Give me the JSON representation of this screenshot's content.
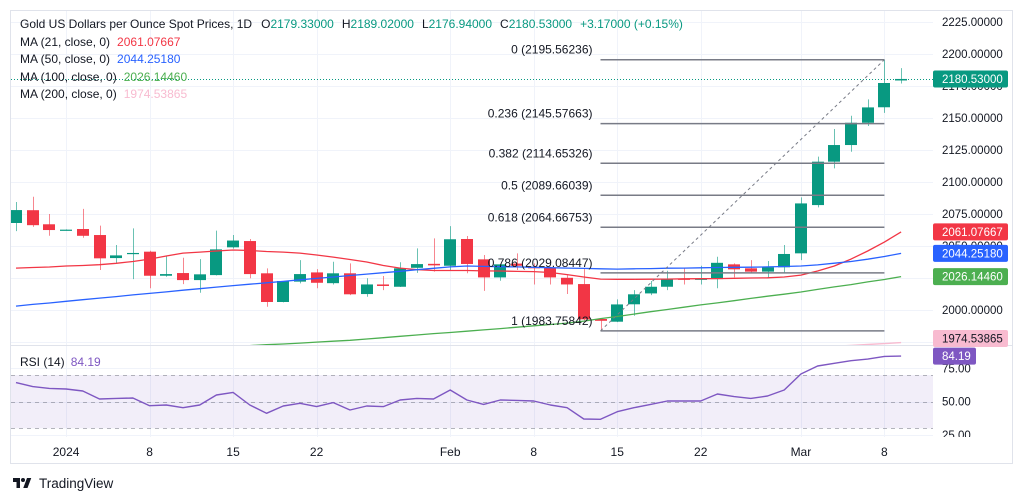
{
  "header": {
    "title": "Gold US Dollars per Ounce Spot Prices, 1D",
    "open_label": "O",
    "open": "2179.33000",
    "high_label": "H",
    "high": "2189.02000",
    "low_label": "L",
    "low": "2176.94000",
    "close_label": "C",
    "close": "2180.53000",
    "change": "+3.17000 (+0.15%)",
    "value_color": "#089981"
  },
  "indicators": [
    {
      "label": "MA (21, close, 0)",
      "value": "2061.07667",
      "color": "#F23645"
    },
    {
      "label": "MA (50, close, 0)",
      "value": "2044.25180",
      "color": "#2962FF"
    },
    {
      "label": "MA (100, close, 0)",
      "value": "2026.14460",
      "color": "#4CAF50"
    },
    {
      "label": "MA (200, close, 0)",
      "value": "1974.53865",
      "color": "#F8BBD0"
    }
  ],
  "rsi_legend": {
    "label": "RSI (14)",
    "value": "84.19",
    "color": "#7E57C2"
  },
  "colors": {
    "up": "#089981",
    "down": "#F23645",
    "text": "#131722",
    "grid": "#F0F3FA",
    "border": "#E0E3EB",
    "fib": "#787B86",
    "rsi_band": "#7E57C2"
  },
  "branding": {
    "name": "TradingView",
    "icon": "tradingview-logo-icon"
  },
  "chart_data": [
    {
      "type": "bar",
      "style": "candlestick",
      "title": "Gold US Dollars per Ounce Spot Prices, 1D",
      "xlabel": "",
      "ylabel": "",
      "ylim": [
        1972.7,
        2233.6
      ],
      "grid": true,
      "legend": "top-left",
      "y_ticks": [
        2225,
        2200,
        2175,
        2150,
        2125,
        2100,
        2075,
        2050,
        2025,
        2000,
        1975
      ],
      "y_tick_labels": [
        "2225.00000",
        "2200.00000",
        "2175.00000",
        "2150.00000",
        "2125.00000",
        "2100.00000",
        "2075.00000",
        "2050.00000",
        null,
        "2000.00000",
        null
      ],
      "x_ticks": [
        {
          "label": "2024",
          "index": 3
        },
        {
          "label": "8",
          "index": 8
        },
        {
          "label": "15",
          "index": 13
        },
        {
          "label": "22",
          "index": 18
        },
        {
          "label": "Feb",
          "index": 26
        },
        {
          "label": "8",
          "index": 31
        },
        {
          "label": "15",
          "index": 36
        },
        {
          "label": "22",
          "index": 41
        },
        {
          "label": "Mar",
          "index": 47
        },
        {
          "label": "8",
          "index": 52
        }
      ],
      "ohlc_fields": [
        "open",
        "high",
        "low",
        "close"
      ],
      "ohlc": [
        [
          2068.0,
          2084.4,
          2061.7,
          2078.1
        ],
        [
          2078.0,
          2088.5,
          2065.0,
          2066.3
        ],
        [
          2067.0,
          2075.0,
          2058.0,
          2062.5
        ],
        [
          2062.4,
          2063.0,
          2062.0,
          2062.8
        ],
        [
          2063.3,
          2079.0,
          2056.5,
          2058.0
        ],
        [
          2058.6,
          2065.9,
          2031.3,
          2040.4
        ],
        [
          2040.6,
          2050.8,
          2036.5,
          2042.7
        ],
        [
          2044.0,
          2063.8,
          2024.2,
          2044.6
        ],
        [
          2045.6,
          2046.3,
          2017.0,
          2026.8
        ],
        [
          2026.8,
          2042.0,
          2026.0,
          2028.1
        ],
        [
          2028.9,
          2040.9,
          2020.3,
          2023.4
        ],
        [
          2023.4,
          2039.8,
          2013.5,
          2027.9
        ],
        [
          2027.3,
          2062.0,
          2027.0,
          2047.4
        ],
        [
          2049.0,
          2058.6,
          2048.0,
          2054.3
        ],
        [
          2053.9,
          2055.5,
          2024.8,
          2028.1
        ],
        [
          2028.7,
          2032.6,
          2002.6,
          2006.3
        ],
        [
          2006.3,
          2022.7,
          2006.0,
          2022.7
        ],
        [
          2022.2,
          2039.0,
          2020.8,
          2028.1
        ],
        [
          2029.4,
          2032.0,
          2017.0,
          2021.3
        ],
        [
          2021.0,
          2037.7,
          2020.0,
          2028.7
        ],
        [
          2028.7,
          2036.5,
          2011.7,
          2012.3
        ],
        [
          2012.5,
          2024.8,
          2010.4,
          2020.0
        ],
        [
          2020.0,
          2026.6,
          2015.6,
          2018.8
        ],
        [
          2018.2,
          2037.3,
          2018.0,
          2032.6
        ],
        [
          2033.0,
          2048.2,
          2029.0,
          2035.9
        ],
        [
          2036.1,
          2056.0,
          2030.0,
          2034.9
        ],
        [
          2034.6,
          2065.6,
          2031.3,
          2055.3
        ],
        [
          2055.5,
          2057.8,
          2028.7,
          2036.0
        ],
        [
          2039.6,
          2043.0,
          2015.0,
          2025.5
        ],
        [
          2025.5,
          2035.9,
          2022.9,
          2035.7
        ],
        [
          2036.3,
          2044.3,
          2031.3,
          2034.6
        ],
        [
          2033.8,
          2036.5,
          2020.0,
          2032.6
        ],
        [
          2033.0,
          2033.8,
          2020.0,
          2025.5
        ],
        [
          2025.2,
          2027.3,
          2012.5,
          2020.0
        ],
        [
          2020.3,
          2032.6,
          1992.0,
          1992.7
        ],
        [
          1993.0,
          1993.5,
          1983.8,
          1991.6
        ],
        [
          1990.9,
          2008.3,
          1990.6,
          2004.4
        ],
        [
          2004.5,
          2015.6,
          1995.5,
          2012.3
        ],
        [
          2013.0,
          2022.7,
          2011.7,
          2018.2
        ],
        [
          2018.2,
          2030.7,
          2015.6,
          2024.2
        ],
        [
          2024.5,
          2032.6,
          2020.0,
          2024.0
        ],
        [
          2024.0,
          2034.6,
          2020.0,
          2024.5
        ],
        [
          2024.2,
          2041.6,
          2017.0,
          2036.9
        ],
        [
          2035.7,
          2036.5,
          2025.5,
          2031.8
        ],
        [
          2032.6,
          2039.0,
          2029.0,
          2030.0
        ],
        [
          2030.0,
          2038.3,
          2025.5,
          2033.4
        ],
        [
          2033.4,
          2050.8,
          2029.0,
          2043.8
        ],
        [
          2044.3,
          2088.0,
          2039.0,
          2083.3
        ],
        [
          2082.0,
          2119.8,
          2080.2,
          2115.9
        ],
        [
          2115.9,
          2141.4,
          2110.7,
          2128.9
        ],
        [
          2128.9,
          2151.8,
          2123.7,
          2146.3
        ],
        [
          2146.3,
          2164.6,
          2143.8,
          2158.3
        ],
        [
          2158.4,
          2195.56,
          2154.0,
          2177.36
        ],
        [
          2179.33,
          2189.02,
          2176.94,
          2180.53
        ]
      ],
      "series": [
        {
          "name": "MA (21, close, 0)",
          "color": "#F23645",
          "values": [
            2032.8,
            2033.2,
            2033.6,
            2034.4,
            2034.8,
            2035.4,
            2036.5,
            2037.9,
            2039.8,
            2042.2,
            2044.5,
            2045.3,
            2046.1,
            2046.9,
            2046.5,
            2045.7,
            2045.3,
            2044.5,
            2043.0,
            2041.4,
            2039.5,
            2037.5,
            2034.8,
            2032.8,
            2031.6,
            2030.9,
            2030.9,
            2030.9,
            2030.6,
            2030.5,
            2030.2,
            2030.0,
            2029.3,
            2027.7,
            2025.8,
            2024.2,
            2024.0,
            2024.0,
            2024.1,
            2024.2,
            2024.4,
            2024.5,
            2024.6,
            2024.8,
            2025.0,
            2025.2,
            2025.8,
            2027.3,
            2030.5,
            2034.4,
            2039.8,
            2046.1,
            2053.1,
            2061.08
          ]
        },
        {
          "name": "MA (50, close, 0)",
          "color": "#2962FF",
          "values": [
            2003.1,
            2004.4,
            2005.5,
            2006.8,
            2008.1,
            2009.3,
            2010.5,
            2011.8,
            2013.0,
            2014.2,
            2015.5,
            2016.7,
            2017.9,
            2019.1,
            2020.2,
            2021.3,
            2022.4,
            2023.6,
            2024.7,
            2025.8,
            2027.0,
            2028.1,
            2029.2,
            2030.3,
            2031.5,
            2032.6,
            2033.7,
            2034.4,
            2034.1,
            2033.9,
            2033.7,
            2033.4,
            2033.1,
            2032.8,
            2032.5,
            2032.2,
            2032.0,
            2032.2,
            2032.4,
            2032.7,
            2032.8,
            2033.0,
            2033.2,
            2033.4,
            2033.5,
            2033.7,
            2034.0,
            2034.4,
            2035.3,
            2036.6,
            2037.9,
            2039.7,
            2041.8,
            2044.25
          ]
        },
        {
          "name": "MA (100, close, 0)",
          "color": "#4CAF50",
          "values": [
            1962.5,
            1963.2,
            1963.8,
            1964.5,
            1965.2,
            1965.9,
            1966.5,
            1967.2,
            1967.9,
            1968.5,
            1969.2,
            1969.9,
            1970.5,
            1971.4,
            1972.2,
            1972.9,
            1973.5,
            1974.2,
            1975.0,
            1975.7,
            1976.4,
            1977.4,
            1978.4,
            1979.5,
            1980.5,
            1981.6,
            1982.5,
            1983.5,
            1984.5,
            1985.5,
            1986.6,
            1987.7,
            1988.7,
            1989.8,
            1991.4,
            1993.3,
            1995.0,
            1996.8,
            1998.7,
            2000.4,
            2002.2,
            2004.0,
            2005.6,
            2007.3,
            2009.1,
            2010.8,
            2012.4,
            2014.1,
            2016.1,
            2018.1,
            2019.9,
            2022.0,
            2023.9,
            2026.14
          ]
        },
        {
          "name": "MA (200, close, 0)",
          "color": "#F8BBD0",
          "values": [
            1937.4,
            1938.1,
            1938.8,
            1939.5,
            1940.2,
            1940.9,
            1941.6,
            1942.3,
            1943.0,
            1943.7,
            1944.4,
            1945.1,
            1945.8,
            1946.5,
            1947.2,
            1947.9,
            1948.6,
            1949.3,
            1950.0,
            1950.7,
            1951.4,
            1952.1,
            1952.8,
            1953.5,
            1954.2,
            1954.9,
            1955.6,
            1956.3,
            1957.0,
            1957.7,
            1958.4,
            1959.1,
            1959.8,
            1960.5,
            1961.2,
            1961.9,
            1962.6,
            1963.3,
            1964.0,
            1964.7,
            1965.4,
            1966.1,
            1966.8,
            1967.5,
            1968.2,
            1968.9,
            1969.6,
            1970.3,
            1971.0,
            1971.7,
            1972.4,
            1973.1,
            1973.8,
            1974.54
          ]
        }
      ],
      "current_price": 2180.53,
      "price_badges": [
        {
          "value": 2180.53,
          "label": "2180.53000",
          "bg": "#089981",
          "fg": "#FFFFFF"
        },
        {
          "value": 2061.07667,
          "label": "2061.07667",
          "bg": "#F23645",
          "fg": "#FFFFFF"
        },
        {
          "value": 2044.2518,
          "label": "2044.25180",
          "bg": "#2962FF",
          "fg": "#FFFFFF"
        },
        {
          "value": 2026.1446,
          "label": "2026.14460",
          "bg": "#4CAF50",
          "fg": "#FFFFFF"
        },
        {
          "value": 1974.53865,
          "label": "1974.53865",
          "bg": "#F8BBD0",
          "fg": "#131722"
        }
      ],
      "fib": {
        "start_index": 35,
        "end_index": 52,
        "high": 2195.56236,
        "low": 1983.75842,
        "levels": [
          {
            "ratio": 0,
            "price": 2195.56236,
            "label": "0 (2195.56236)"
          },
          {
            "ratio": 0.236,
            "price": 2145.57663,
            "label": "0.236 (2145.57663)"
          },
          {
            "ratio": 0.382,
            "price": 2114.65326,
            "label": "0.382 (2114.65326)"
          },
          {
            "ratio": 0.5,
            "price": 2089.66039,
            "label": "0.5 (2089.66039)"
          },
          {
            "ratio": 0.618,
            "price": 2064.66753,
            "label": "0.618 (2064.66753)"
          },
          {
            "ratio": 0.786,
            "price": 2029.08447,
            "label": "0.786 (2029.08447)"
          },
          {
            "ratio": 1,
            "price": 1983.75842,
            "label": "1 (1983.75842)"
          }
        ]
      }
    },
    {
      "type": "line",
      "title": "RSI (14)",
      "xlabel": "",
      "ylabel": "",
      "ylim": [
        23.5,
        91.8
      ],
      "grid": true,
      "y_ticks": [
        75,
        50,
        25
      ],
      "y_tick_labels": [
        "75.00",
        "50.00",
        "25.00"
      ],
      "bands": {
        "upper": 70,
        "middle": 50,
        "lower": 30
      },
      "series": [
        {
          "name": "RSI (14)",
          "color": "#7E57C2",
          "values": [
            64.3,
            61.3,
            60.0,
            59.5,
            58.0,
            52.0,
            52.5,
            52.8,
            47.0,
            47.5,
            45.5,
            47.5,
            55.0,
            57.0,
            47.5,
            41.3,
            46.8,
            48.8,
            46.3,
            49.3,
            43.8,
            46.8,
            46.3,
            51.3,
            52.5,
            52.0,
            58.8,
            51.3,
            48.0,
            51.3,
            51.0,
            50.5,
            47.5,
            45.5,
            37.0,
            36.8,
            42.5,
            45.5,
            48.0,
            50.5,
            50.5,
            50.5,
            55.8,
            53.8,
            52.5,
            54.3,
            58.8,
            70.8,
            76.8,
            78.8,
            80.8,
            82.0,
            84.0,
            84.19
          ]
        }
      ],
      "badge": {
        "value": 84.19,
        "label": "84.19",
        "bg": "#7E57C2",
        "fg": "#FFFFFF"
      }
    }
  ]
}
